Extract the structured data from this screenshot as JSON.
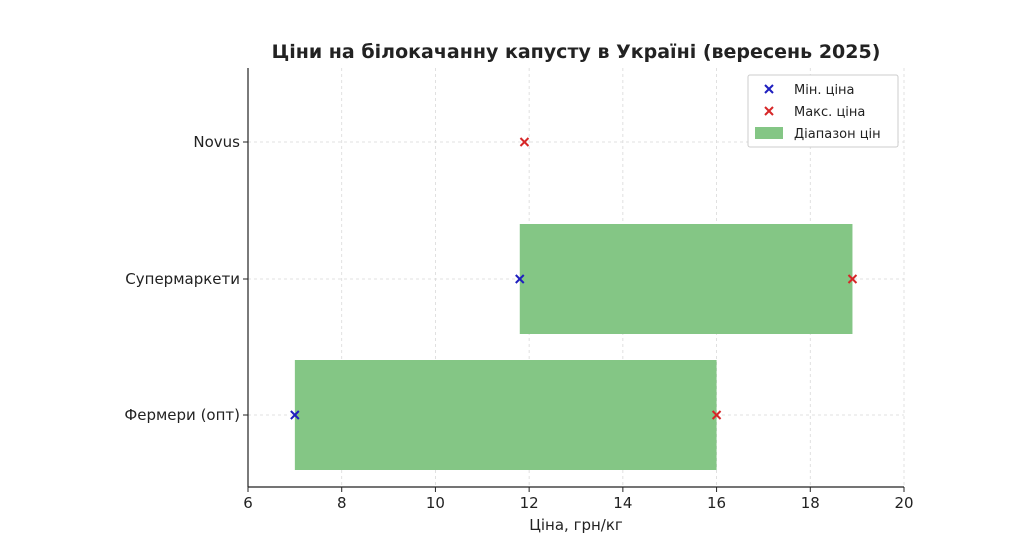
{
  "chart_data": {
    "type": "bar",
    "orientation": "horizontal",
    "title": "Ціни на білокачанну капусту в Україні (вересень 2025)",
    "xlabel": "Ціна, грн/кг",
    "ylabel": "",
    "xlim": [
      6,
      20
    ],
    "xticks": [
      6,
      8,
      10,
      12,
      14,
      16,
      18,
      20
    ],
    "grid": true,
    "legend_position": "top-right",
    "categories": [
      "Фермери (опт)",
      "Супермаркети",
      "Novus"
    ],
    "series": [
      {
        "name": "Мін. ціна",
        "marker": "x",
        "color": "#1f1fbf",
        "values": [
          7,
          11.8,
          null
        ]
      },
      {
        "name": "Макс. ціна",
        "marker": "x",
        "color": "#d62728",
        "values": [
          16,
          18.9,
          11.9
        ]
      },
      {
        "name": "Діапазон цін",
        "kind": "range-bar",
        "color": "#84c685",
        "ranges": [
          [
            7,
            16
          ],
          [
            11.8,
            18.9
          ],
          null
        ]
      }
    ]
  }
}
